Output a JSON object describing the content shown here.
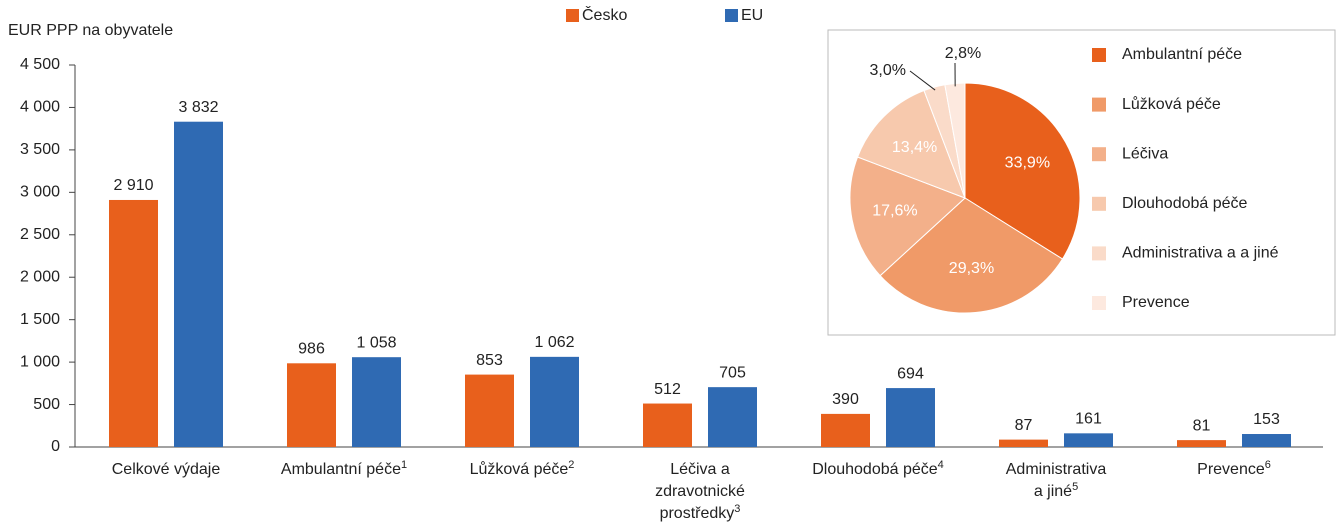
{
  "chart_data": [
    {
      "type": "bar",
      "y_label": "EUR PPP na obyvatele",
      "categories": [
        "Celkové výdaje",
        "Ambulantní péče",
        "Lůžková péče",
        "Léčiva a zdravotnické prostředky",
        "Dlouhodobá péče",
        "Administrativa a jiné",
        "Prevence"
      ],
      "category_notes": [
        null,
        "1",
        "2",
        "3",
        "4",
        "5",
        "6"
      ],
      "series": [
        {
          "name": "Česko",
          "color": "#e8601c",
          "values": [
            2910,
            986,
            853,
            512,
            390,
            87,
            81
          ],
          "value_labels": [
            "2 910",
            "986",
            "853",
            "512",
            "390",
            "87",
            "81"
          ]
        },
        {
          "name": "EU",
          "color": "#2f6ab3",
          "values": [
            3832,
            1058,
            1062,
            705,
            694,
            161,
            153
          ],
          "value_labels": [
            "3 832",
            "1 058",
            "1 062",
            "705",
            "694",
            "161",
            "153"
          ]
        }
      ],
      "ylim": [
        0,
        4500
      ],
      "yticks": [
        0,
        500,
        {
          "value": 1000,
          "label": "1 000"
        },
        {
          "value": 1500,
          "label": "1 500"
        },
        {
          "value": 2000,
          "label": "2 000"
        },
        {
          "value": 2500,
          "label": "2 500"
        },
        {
          "value": 3000,
          "label": "3 000"
        },
        {
          "value": 3500,
          "label": "3 500"
        },
        {
          "value": 4000,
          "label": "4 000"
        },
        {
          "value": 4500,
          "label": "4 500"
        }
      ]
    },
    {
      "type": "pie",
      "categories": [
        "Ambulantní péče",
        "Lůžková péče",
        "Léčiva",
        "Dlouhodobá péče",
        "Administrativa a a jiné",
        "Prevence"
      ],
      "values": [
        33.9,
        29.3,
        17.6,
        13.4,
        3.0,
        2.8
      ],
      "value_labels": [
        "33,9%",
        "29,3%",
        "17,6%",
        "13,4%",
        "3,0%",
        "2,8%"
      ],
      "colors": [
        "#e8601c",
        "#f09a68",
        "#f3b08a",
        "#f7c9ad",
        "#fadbc9",
        "#fde9df"
      ]
    }
  ]
}
